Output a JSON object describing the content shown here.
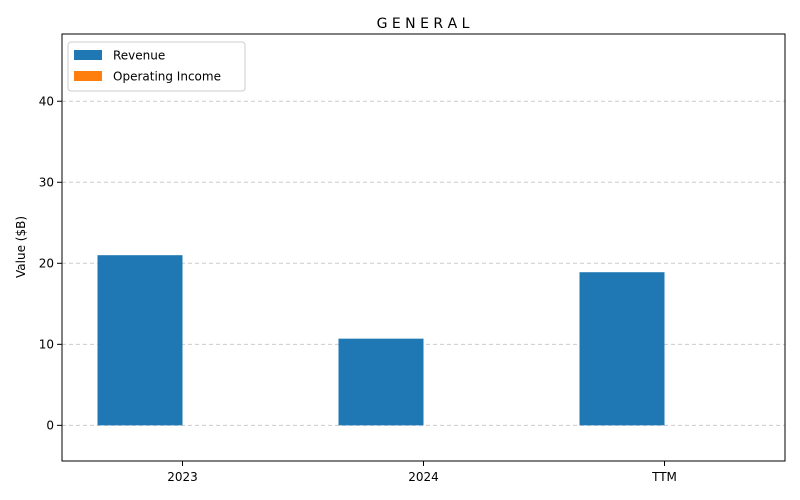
{
  "chart_data": {
    "type": "bar",
    "title": "G E N E R A L",
    "xlabel": "",
    "ylabel": "Value ($B)",
    "categories": [
      "2023",
      "2024",
      "TTM"
    ],
    "series": [
      {
        "name": "Revenue",
        "values": [
          21.0,
          10.7,
          18.9
        ],
        "color": "#1f77b4"
      },
      {
        "name": "Operating Income",
        "values": [
          0,
          0,
          0
        ],
        "color": "#ff7f0e"
      }
    ],
    "ylim": [
      -4.4,
      48.3
    ],
    "yticks": [
      0,
      10,
      20,
      30,
      40
    ],
    "grid": true,
    "legend_position": "top-left"
  }
}
